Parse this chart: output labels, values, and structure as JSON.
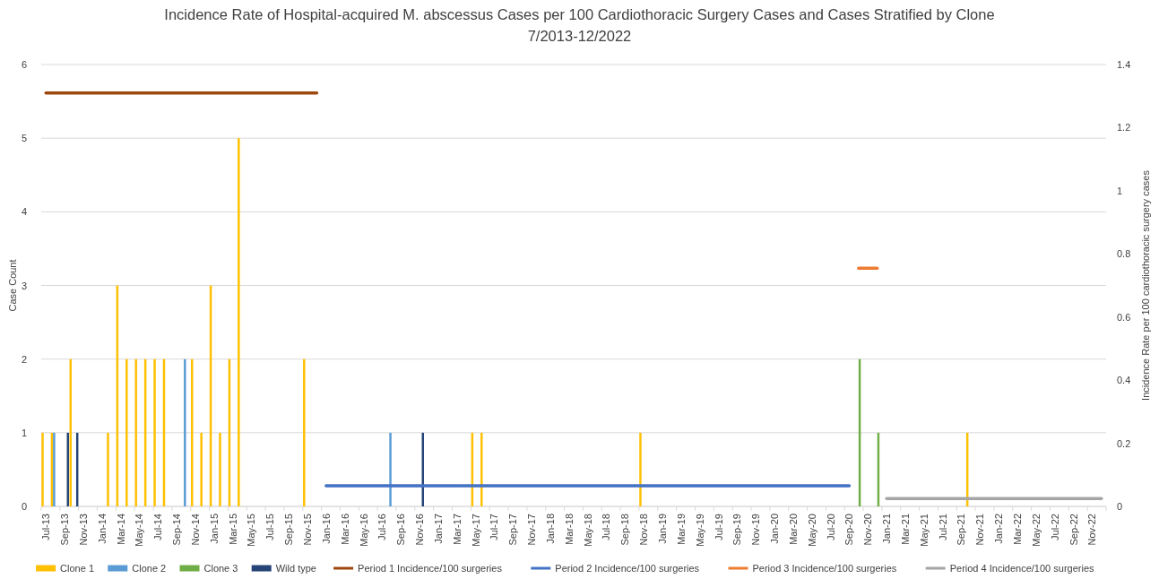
{
  "chart_data": {
    "type": "bar",
    "title": "Incidence Rate of Hospital-acquired M. abscessus Cases per 100 Cardiothoracic Surgery Cases and Cases Stratified by Clone",
    "subtitle": "7/2013-12/2022",
    "ylabel": "Case Count",
    "y2label": "Incidence Rate per 100 cardiothoracic surgery cases",
    "categories": [
      "Jul-13",
      null,
      "Sep-13",
      null,
      "Nov-13",
      null,
      "Jan-14",
      null,
      "Mar-14",
      null,
      "May-14",
      null,
      "Jul-14",
      null,
      "Sep-14",
      null,
      "Nov-14",
      null,
      "Jan-15",
      null,
      "Mar-15",
      null,
      "May-15",
      null,
      "Jul-15",
      null,
      "Sep-15",
      null,
      "Nov-15",
      null,
      "Jan-16",
      null,
      "Mar-16",
      null,
      "May-16",
      null,
      "Jul-16",
      null,
      "Sep-16",
      null,
      "Nov-16",
      null,
      "Jan-17",
      null,
      "Mar-17",
      null,
      "May-17",
      null,
      "Jul-17",
      null,
      "Sep-17",
      null,
      "Nov-17",
      null,
      "Jan-18",
      null,
      "Mar-18",
      null,
      "May-18",
      null,
      "Jul-18",
      null,
      "Sep-18",
      null,
      "Nov-18",
      null,
      "Jan-19",
      null,
      "Mar-19",
      null,
      "May-19",
      null,
      "Jul-19",
      null,
      "Sep-19",
      null,
      "Nov-19",
      null,
      "Jan-20",
      null,
      "Mar-20",
      null,
      "May-20",
      null,
      "Jul-20",
      null,
      "Sep-20",
      null,
      "Nov-20",
      null,
      "Jan-21",
      null,
      "Mar-21",
      null,
      "May-21",
      null,
      "Jul-21",
      null,
      "Sep-21",
      null,
      "Nov-21",
      null,
      "Jan-22",
      null,
      "Mar-22",
      null,
      "May-22",
      null,
      "Jul-22",
      null,
      "Sep-22",
      null,
      "Nov-22",
      null
    ],
    "series": [
      {
        "name": "Clone 1",
        "color": "#ffc000",
        "values": [
          1,
          1,
          0,
          2,
          0,
          0,
          0,
          1,
          3,
          2,
          2,
          2,
          2,
          2,
          0,
          0,
          2,
          1,
          3,
          1,
          2,
          5,
          0,
          0,
          0,
          0,
          0,
          0,
          2,
          0,
          0,
          0,
          0,
          0,
          0,
          0,
          0,
          0,
          0,
          0,
          0,
          0,
          0,
          0,
          0,
          0,
          1,
          1,
          0,
          0,
          0,
          0,
          0,
          0,
          0,
          0,
          0,
          0,
          0,
          0,
          0,
          0,
          0,
          0,
          1,
          0,
          0,
          0,
          0,
          0,
          0,
          0,
          0,
          0,
          0,
          0,
          0,
          0,
          0,
          0,
          0,
          0,
          0,
          0,
          0,
          0,
          0,
          0,
          0,
          0,
          0,
          0,
          0,
          0,
          0,
          0,
          0,
          0,
          0,
          1,
          0,
          0,
          0,
          0,
          0,
          0,
          0,
          0,
          0,
          0,
          0,
          0,
          0,
          0
        ]
      },
      {
        "name": "Clone 2",
        "color": "#5b9bd5",
        "values": [
          0,
          1,
          0,
          0,
          0,
          0,
          0,
          0,
          0,
          0,
          0,
          0,
          0,
          0,
          0,
          2,
          0,
          0,
          0,
          0,
          0,
          0,
          0,
          0,
          0,
          0,
          0,
          0,
          0,
          0,
          0,
          0,
          0,
          0,
          0,
          0,
          0,
          1,
          0,
          0,
          0,
          0,
          0,
          0,
          0,
          0,
          0,
          0,
          0,
          0,
          0,
          0,
          0,
          0,
          0,
          0,
          0,
          0,
          0,
          0,
          0,
          0,
          0,
          0,
          0,
          0,
          0,
          0,
          0,
          0,
          0,
          0,
          0,
          0,
          0,
          0,
          0,
          0,
          0,
          0,
          0,
          0,
          0,
          0,
          0,
          0,
          0,
          0,
          0,
          0,
          0,
          0,
          0,
          0,
          0,
          0,
          0,
          0,
          0,
          0,
          0,
          0,
          0,
          0,
          0,
          0,
          0,
          0,
          0,
          0,
          0,
          0,
          0,
          0
        ]
      },
      {
        "name": "Clone 3",
        "color": "#70ad47",
        "values": [
          0,
          0,
          0,
          0,
          0,
          0,
          0,
          0,
          0,
          0,
          0,
          0,
          0,
          0,
          0,
          0,
          0,
          0,
          0,
          0,
          0,
          0,
          0,
          0,
          0,
          0,
          0,
          0,
          0,
          0,
          0,
          0,
          0,
          0,
          0,
          0,
          0,
          0,
          0,
          0,
          0,
          0,
          0,
          0,
          0,
          0,
          0,
          0,
          0,
          0,
          0,
          0,
          0,
          0,
          0,
          0,
          0,
          0,
          0,
          0,
          0,
          0,
          0,
          0,
          0,
          0,
          0,
          0,
          0,
          0,
          0,
          0,
          0,
          0,
          0,
          0,
          0,
          0,
          0,
          0,
          0,
          0,
          0,
          0,
          0,
          0,
          0,
          2,
          0,
          1,
          0,
          0,
          0,
          0,
          0,
          0,
          0,
          0,
          0,
          0,
          0,
          0,
          0,
          0,
          0,
          0,
          0,
          0,
          0,
          0,
          0,
          0,
          0,
          0
        ]
      },
      {
        "name": "Wild type",
        "color": "#264478",
        "values": [
          0,
          0,
          1,
          1,
          0,
          0,
          0,
          0,
          0,
          0,
          0,
          0,
          0,
          0,
          0,
          0,
          0,
          0,
          0,
          0,
          0,
          0,
          0,
          0,
          0,
          0,
          0,
          0,
          0,
          0,
          0,
          0,
          0,
          0,
          0,
          0,
          0,
          0,
          0,
          0,
          1,
          0,
          0,
          0,
          0,
          0,
          0,
          0,
          0,
          0,
          0,
          0,
          0,
          0,
          0,
          0,
          0,
          0,
          0,
          0,
          0,
          0,
          0,
          0,
          0,
          0,
          0,
          0,
          0,
          0,
          0,
          0,
          0,
          0,
          0,
          0,
          0,
          0,
          0,
          0,
          0,
          0,
          0,
          0,
          0,
          0,
          0,
          0,
          0,
          0,
          0,
          0,
          0,
          0,
          0,
          0,
          0,
          0,
          0,
          0,
          0,
          0,
          0,
          0,
          0,
          0,
          0,
          0,
          0,
          0,
          0,
          0,
          0,
          0
        ]
      },
      {
        "name": "Period 1 Incidence/100 surgeries",
        "type": "line",
        "axis": "y2",
        "color": "#9e480e",
        "values": [
          1.31,
          1.31,
          1.31,
          1.31,
          1.31,
          1.31,
          1.31,
          1.31,
          1.31,
          1.31,
          1.31,
          1.31,
          1.31,
          1.31,
          1.31,
          1.31,
          1.31,
          1.31,
          1.31,
          1.31,
          1.31,
          1.31,
          1.31,
          1.31,
          1.31,
          1.31,
          1.31,
          1.31,
          1.31,
          1.31,
          null,
          null,
          null,
          null,
          null,
          null,
          null,
          null,
          null,
          null,
          null,
          null,
          null,
          null,
          null,
          null,
          null,
          null,
          null,
          null,
          null,
          null,
          null,
          null,
          null,
          null,
          null,
          null,
          null,
          null,
          null,
          null,
          null,
          null,
          null,
          null,
          null,
          null,
          null,
          null,
          null,
          null,
          null,
          null,
          null,
          null,
          null,
          null,
          null,
          null,
          null,
          null,
          null,
          null,
          null,
          null,
          null,
          null,
          null,
          null,
          null,
          null,
          null,
          null,
          null,
          null,
          null,
          null,
          null,
          null,
          null,
          null,
          null,
          null,
          null,
          null,
          null,
          null,
          null,
          null,
          null,
          null,
          null,
          null
        ]
      },
      {
        "name": "Period 2 Incidence/100 surgeries",
        "type": "line",
        "axis": "y2",
        "color": "#4472c4",
        "values": [
          null,
          null,
          null,
          null,
          null,
          null,
          null,
          null,
          null,
          null,
          null,
          null,
          null,
          null,
          null,
          null,
          null,
          null,
          null,
          null,
          null,
          null,
          null,
          null,
          null,
          null,
          null,
          null,
          null,
          null,
          0.065,
          0.065,
          0.065,
          0.065,
          0.065,
          0.065,
          0.065,
          0.065,
          0.065,
          0.065,
          0.065,
          0.065,
          0.065,
          0.065,
          0.065,
          0.065,
          0.065,
          0.065,
          0.065,
          0.065,
          0.065,
          0.065,
          0.065,
          0.065,
          0.065,
          0.065,
          0.065,
          0.065,
          0.065,
          0.065,
          0.065,
          0.065,
          0.065,
          0.065,
          0.065,
          0.065,
          0.065,
          0.065,
          0.065,
          0.065,
          0.065,
          0.065,
          0.065,
          0.065,
          0.065,
          0.065,
          0.065,
          0.065,
          0.065,
          0.065,
          0.065,
          0.065,
          0.065,
          0.065,
          0.065,
          0.065,
          0.065,
          null,
          null,
          null,
          null,
          null,
          null,
          null,
          null,
          null,
          null,
          null,
          null,
          null,
          null,
          null,
          null,
          null,
          null,
          null,
          null,
          null,
          null,
          null,
          null,
          null,
          null,
          null
        ]
      },
      {
        "name": "Period 3 Incidence/100 surgeries",
        "type": "line",
        "axis": "y2",
        "color": "#ed7d31",
        "values": [
          null,
          null,
          null,
          null,
          null,
          null,
          null,
          null,
          null,
          null,
          null,
          null,
          null,
          null,
          null,
          null,
          null,
          null,
          null,
          null,
          null,
          null,
          null,
          null,
          null,
          null,
          null,
          null,
          null,
          null,
          null,
          null,
          null,
          null,
          null,
          null,
          null,
          null,
          null,
          null,
          null,
          null,
          null,
          null,
          null,
          null,
          null,
          null,
          null,
          null,
          null,
          null,
          null,
          null,
          null,
          null,
          null,
          null,
          null,
          null,
          null,
          null,
          null,
          null,
          null,
          null,
          null,
          null,
          null,
          null,
          null,
          null,
          null,
          null,
          null,
          null,
          null,
          null,
          null,
          null,
          null,
          null,
          null,
          null,
          null,
          null,
          null,
          0.755,
          0.755,
          0.755,
          null,
          null,
          null,
          null,
          null,
          null,
          null,
          null,
          null,
          null,
          null,
          null,
          null,
          null,
          null,
          null,
          null,
          null,
          null,
          null,
          null,
          null,
          null,
          null
        ]
      },
      {
        "name": "Period 4 Incidence/100 surgeries",
        "type": "line",
        "axis": "y2",
        "color": "#a5a5a5",
        "values": [
          null,
          null,
          null,
          null,
          null,
          null,
          null,
          null,
          null,
          null,
          null,
          null,
          null,
          null,
          null,
          null,
          null,
          null,
          null,
          null,
          null,
          null,
          null,
          null,
          null,
          null,
          null,
          null,
          null,
          null,
          null,
          null,
          null,
          null,
          null,
          null,
          null,
          null,
          null,
          null,
          null,
          null,
          null,
          null,
          null,
          null,
          null,
          null,
          null,
          null,
          null,
          null,
          null,
          null,
          null,
          null,
          null,
          null,
          null,
          null,
          null,
          null,
          null,
          null,
          null,
          null,
          null,
          null,
          null,
          null,
          null,
          null,
          null,
          null,
          null,
          null,
          null,
          null,
          null,
          null,
          null,
          null,
          null,
          null,
          null,
          null,
          null,
          null,
          null,
          null,
          0.025,
          0.025,
          0.025,
          0.025,
          0.025,
          0.025,
          0.025,
          0.025,
          0.025,
          0.025,
          0.025,
          0.025,
          0.025,
          0.025,
          0.025,
          0.025,
          0.025,
          0.025,
          0.025,
          0.025,
          0.025,
          0.025,
          0.025,
          0.025
        ]
      }
    ],
    "ylim": [
      0,
      6
    ],
    "yticks": [
      0,
      1,
      2,
      3,
      4,
      5,
      6
    ],
    "y2lim": [
      0,
      1.4
    ],
    "y2ticks": [
      0,
      0.2,
      0.4,
      0.6,
      0.8,
      1,
      1.2,
      1.4
    ],
    "grid": "y",
    "legend": "bottom"
  }
}
